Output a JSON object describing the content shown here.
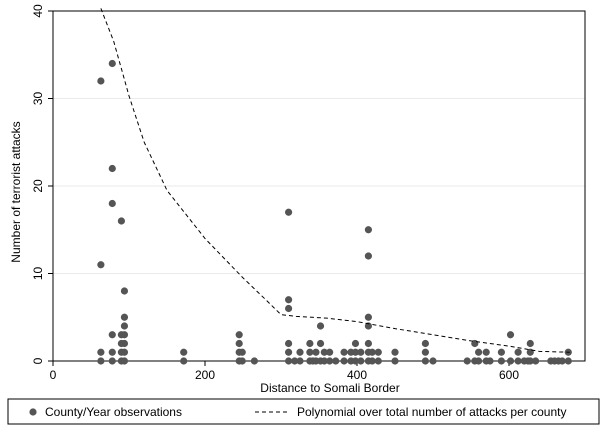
{
  "chart_data": {
    "type": "scatter",
    "title": "",
    "xlabel": "Distance to Somali Border",
    "ylabel": "Number of terrorist attacks",
    "xlim": [
      0,
      700
    ],
    "ylim": [
      0,
      40
    ],
    "xticks": [
      "0",
      "200",
      "400",
      "600"
    ],
    "xtick_values": [
      0,
      200,
      400,
      600
    ],
    "yticks": [
      "0",
      "10",
      "20",
      "30",
      "40"
    ],
    "ytick_values": [
      0,
      10,
      20,
      30,
      40
    ],
    "grid": "horizontal",
    "legend_position": "bottom",
    "series": [
      {
        "name": "County/Year observations",
        "type": "scatter",
        "color": "#555555",
        "points": [
          [
            63,
            32
          ],
          [
            63,
            11
          ],
          [
            63,
            1
          ],
          [
            63,
            0
          ],
          [
            78,
            34
          ],
          [
            78,
            22
          ],
          [
            78,
            18
          ],
          [
            78,
            3
          ],
          [
            78,
            1
          ],
          [
            78,
            0
          ],
          [
            90,
            16
          ],
          [
            90,
            3
          ],
          [
            90,
            2
          ],
          [
            90,
            1
          ],
          [
            90,
            0
          ],
          [
            94,
            8
          ],
          [
            94,
            5
          ],
          [
            94,
            4
          ],
          [
            94,
            3
          ],
          [
            94,
            2
          ],
          [
            94,
            1
          ],
          [
            94,
            0
          ],
          [
            172,
            1
          ],
          [
            172,
            0
          ],
          [
            245,
            3
          ],
          [
            245,
            2
          ],
          [
            245,
            1
          ],
          [
            245,
            0
          ],
          [
            249,
            1
          ],
          [
            249,
            0
          ],
          [
            265,
            0
          ],
          [
            310,
            17
          ],
          [
            310,
            7
          ],
          [
            310,
            6
          ],
          [
            310,
            2
          ],
          [
            310,
            1
          ],
          [
            310,
            0
          ],
          [
            318,
            0
          ],
          [
            325,
            1
          ],
          [
            325,
            0
          ],
          [
            338,
            2
          ],
          [
            338,
            1
          ],
          [
            338,
            0
          ],
          [
            342,
            0
          ],
          [
            346,
            1
          ],
          [
            346,
            0
          ],
          [
            352,
            4
          ],
          [
            352,
            2
          ],
          [
            352,
            0
          ],
          [
            357,
            1
          ],
          [
            357,
            0
          ],
          [
            364,
            1
          ],
          [
            364,
            0
          ],
          [
            372,
            0
          ],
          [
            383,
            1
          ],
          [
            383,
            0
          ],
          [
            392,
            1
          ],
          [
            392,
            0
          ],
          [
            398,
            2
          ],
          [
            398,
            1
          ],
          [
            398,
            0
          ],
          [
            405,
            1
          ],
          [
            405,
            0
          ],
          [
            415,
            15
          ],
          [
            415,
            12
          ],
          [
            415,
            5
          ],
          [
            415,
            4
          ],
          [
            415,
            2
          ],
          [
            415,
            1
          ],
          [
            415,
            0
          ],
          [
            420,
            1
          ],
          [
            420,
            0
          ],
          [
            428,
            1
          ],
          [
            428,
            0
          ],
          [
            450,
            1
          ],
          [
            450,
            0
          ],
          [
            490,
            2
          ],
          [
            490,
            1
          ],
          [
            490,
            0
          ],
          [
            500,
            0
          ],
          [
            545,
            0
          ],
          [
            555,
            2
          ],
          [
            555,
            0
          ],
          [
            560,
            1
          ],
          [
            560,
            0
          ],
          [
            570,
            1
          ],
          [
            570,
            0
          ],
          [
            575,
            0
          ],
          [
            590,
            1
          ],
          [
            590,
            0
          ],
          [
            602,
            3
          ],
          [
            602,
            0
          ],
          [
            612,
            1
          ],
          [
            612,
            0
          ],
          [
            620,
            0
          ],
          [
            625,
            0
          ],
          [
            628,
            2
          ],
          [
            628,
            1
          ],
          [
            628,
            0
          ],
          [
            635,
            0
          ],
          [
            655,
            0
          ],
          [
            660,
            0
          ],
          [
            665,
            0
          ],
          [
            670,
            0
          ],
          [
            678,
            1
          ],
          [
            678,
            0
          ]
        ]
      },
      {
        "name": "Polynomial over total number of attacks per county",
        "type": "line",
        "style": "dashed",
        "color": "#000000",
        "points": [
          [
            63,
            40.3
          ],
          [
            80,
            36.5
          ],
          [
            100,
            30.3
          ],
          [
            120,
            25.0
          ],
          [
            150,
            19.5
          ],
          [
            200,
            14.0
          ],
          [
            250,
            9.5
          ],
          [
            280,
            7.0
          ],
          [
            300,
            5.3
          ],
          [
            320,
            5.1
          ],
          [
            360,
            4.9
          ],
          [
            400,
            4.5
          ],
          [
            450,
            3.7
          ],
          [
            500,
            3.0
          ],
          [
            550,
            2.3
          ],
          [
            600,
            1.7
          ],
          [
            640,
            1.1
          ],
          [
            680,
            1.0
          ]
        ]
      }
    ]
  }
}
